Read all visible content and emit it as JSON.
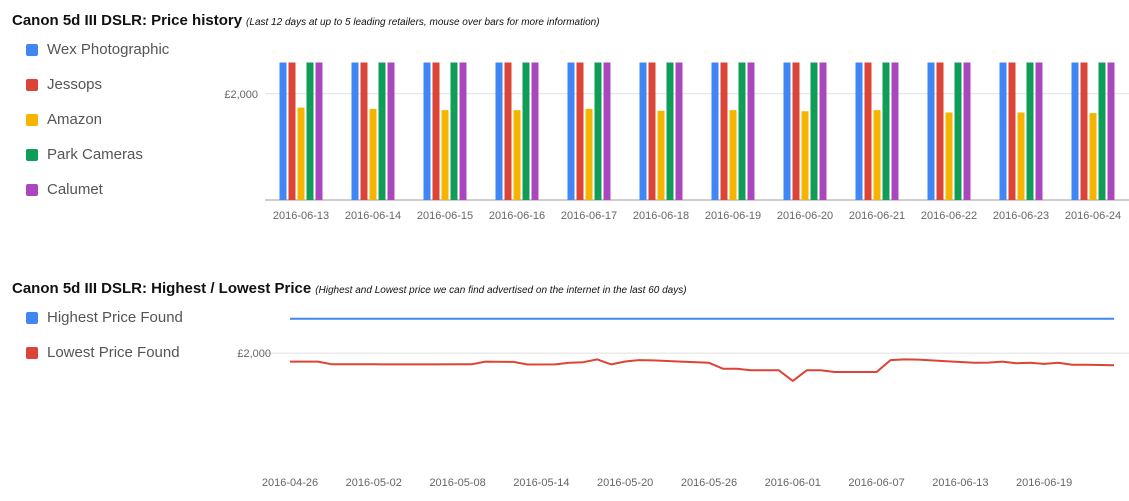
{
  "colors": {
    "wex": "#4285f4",
    "jessops": "#db4437",
    "amazon": "#f4b400",
    "park": "#0f9d58",
    "calumet": "#ab47bc",
    "grid": "#e0e0e0",
    "axis": "#9e9e9e"
  },
  "chart1": {
    "title": "Canon 5d III DSLR: Price history",
    "subtitle": "(Last 12 days at up to 5 leading retailers, mouse over bars for more information)"
  },
  "chart2": {
    "title": "Canon 5d III DSLR: Highest / Lowest Price",
    "subtitle": "(Highest and Lowest price we can find advertised on the internet in the last 60 days)"
  },
  "chart_data": [
    {
      "type": "bar",
      "title": "Canon 5d III DSLR: Price history",
      "subtitle": "(Last 12 days at up to 5 leading retailers, mouse over bars for more information)",
      "categories": [
        "2016-06-13",
        "2016-06-14",
        "2016-06-15",
        "2016-06-16",
        "2016-06-17",
        "2016-06-18",
        "2016-06-19",
        "2016-06-20",
        "2016-06-21",
        "2016-06-22",
        "2016-06-23",
        "2016-06-24"
      ],
      "y_tick_labels": [
        "£2,000"
      ],
      "y_ticks": [
        2000
      ],
      "ylim": [
        1150,
        2270
      ],
      "grid": true,
      "legend_position": "left",
      "series": [
        {
          "name": "Wex Photographic",
          "color": "#4285f4",
          "values": [
            2250,
            2250,
            2250,
            2250,
            2250,
            2250,
            2250,
            2250,
            2250,
            2250,
            2250,
            2250
          ]
        },
        {
          "name": "Jessops",
          "color": "#db4437",
          "values": [
            2250,
            2250,
            2250,
            2250,
            2250,
            2250,
            2250,
            2250,
            2250,
            2250,
            2250,
            2250
          ]
        },
        {
          "name": "Amazon",
          "color": "#f4b400",
          "values": [
            1889,
            1879,
            1869,
            1869,
            1879,
            1864,
            1869,
            1860,
            1869,
            1850,
            1850,
            1845
          ]
        },
        {
          "name": "Park Cameras",
          "color": "#0f9d58",
          "values": [
            2250,
            2250,
            2250,
            2250,
            2250,
            2250,
            2250,
            2250,
            2250,
            2250,
            2250,
            2250
          ]
        },
        {
          "name": "Calumet",
          "color": "#ab47bc",
          "values": [
            2250,
            2250,
            2250,
            2250,
            2250,
            2250,
            2250,
            2250,
            2250,
            2250,
            2250,
            2250
          ]
        }
      ]
    },
    {
      "type": "line",
      "title": "Canon 5d III DSLR: Highest / Lowest Price",
      "subtitle": "(Highest and Lowest price we can find advertised on the internet in the last 60 days)",
      "x_tick_labels": [
        "2016-04-26",
        "2016-05-02",
        "2016-05-08",
        "2016-05-14",
        "2016-05-20",
        "2016-05-26",
        "2016-06-01",
        "2016-06-07",
        "2016-06-13",
        "2016-06-19"
      ],
      "x_start": "2016-04-26",
      "x_end": "2016-06-24",
      "y_tick_labels": [
        "£2,000"
      ],
      "y_ticks": [
        2000
      ],
      "ylim": [
        1150,
        2270
      ],
      "grid": true,
      "legend_position": "left",
      "series": [
        {
          "name": "Highest Price Found",
          "color": "#4285f4",
          "x": [
            "2016-04-26",
            "2016-06-24"
          ],
          "values": [
            2250,
            2250
          ]
        },
        {
          "name": "Lowest Price Found",
          "color": "#db4437",
          "x": [
            "2016-04-26",
            "2016-04-28",
            "2016-04-29",
            "2016-05-02",
            "2016-05-04",
            "2016-05-06",
            "2016-05-09",
            "2016-05-10",
            "2016-05-12",
            "2016-05-13",
            "2016-05-15",
            "2016-05-16",
            "2016-05-17",
            "2016-05-18",
            "2016-05-19",
            "2016-05-20",
            "2016-05-21",
            "2016-05-22",
            "2016-05-24",
            "2016-05-26",
            "2016-05-27",
            "2016-05-28",
            "2016-05-29",
            "2016-05-30",
            "2016-05-31",
            "2016-06-01",
            "2016-06-02",
            "2016-06-03",
            "2016-06-04",
            "2016-06-06",
            "2016-06-07",
            "2016-06-08",
            "2016-06-09",
            "2016-06-10",
            "2016-06-12",
            "2016-06-14",
            "2016-06-15",
            "2016-06-16",
            "2016-06-17",
            "2016-06-18",
            "2016-06-19",
            "2016-06-20",
            "2016-06-21",
            "2016-06-22",
            "2016-06-24"
          ],
          "values": [
            1938,
            1938,
            1919,
            1919,
            1918,
            1918,
            1919,
            1938,
            1936,
            1917,
            1918,
            1930,
            1934,
            1954,
            1918,
            1939,
            1949,
            1947,
            1938,
            1930,
            1887,
            1887,
            1875,
            1875,
            1875,
            1798,
            1875,
            1875,
            1863,
            1863,
            1863,
            1949,
            1954,
            1953,
            1941,
            1930,
            1931,
            1938,
            1926,
            1930,
            1922,
            1930,
            1915,
            1915,
            1912
          ]
        }
      ]
    }
  ]
}
